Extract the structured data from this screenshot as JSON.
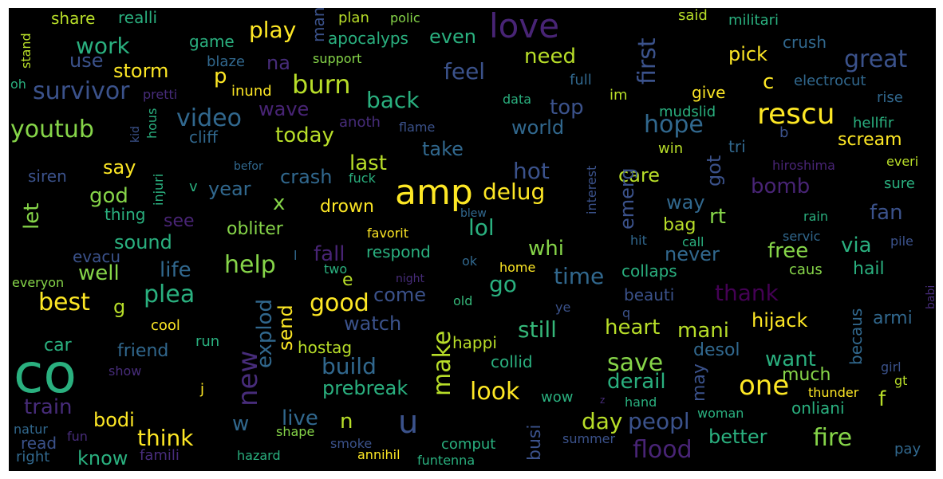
{
  "words": [
    {
      "text": "co",
      "color": "#2ab07f"
    },
    {
      "text": "amp",
      "color": "#fde725"
    },
    {
      "text": "love",
      "color": "#482475"
    },
    {
      "text": "u",
      "color": "#3b528b"
    },
    {
      "text": "rescu",
      "color": "#fde725"
    },
    {
      "text": "one",
      "color": "#fde725"
    },
    {
      "text": "new",
      "color": "#472c7a"
    },
    {
      "text": "burn",
      "color": "#b8de29"
    },
    {
      "text": "hope",
      "color": "#31688e"
    },
    {
      "text": "look",
      "color": "#fde725"
    },
    {
      "text": "great",
      "color": "#3b528b"
    },
    {
      "text": "make",
      "color": "#b8de29"
    },
    {
      "text": "fire",
      "color": "#86d549"
    },
    {
      "text": "video",
      "color": "#31688e"
    },
    {
      "text": "survivor",
      "color": "#3b528b"
    },
    {
      "text": "youtub",
      "color": "#86d549"
    },
    {
      "text": "save",
      "color": "#86d549"
    },
    {
      "text": "flood",
      "color": "#482475"
    },
    {
      "text": "best",
      "color": "#fde725"
    },
    {
      "text": "good",
      "color": "#fde725"
    },
    {
      "text": "plea",
      "color": "#2ab07f"
    },
    {
      "text": "help",
      "color": "#86d549"
    },
    {
      "text": "first",
      "color": "#3b528b"
    },
    {
      "text": "play",
      "color": "#fde725"
    },
    {
      "text": "work",
      "color": "#2ab07f"
    },
    {
      "text": "go",
      "color": "#2ab07f"
    },
    {
      "text": "lol",
      "color": "#2ab07f"
    },
    {
      "text": "time",
      "color": "#31688e"
    },
    {
      "text": "peopl",
      "color": "#3b528b"
    },
    {
      "text": "still",
      "color": "#35b779"
    },
    {
      "text": "thank",
      "color": "#440154"
    },
    {
      "text": "build",
      "color": "#31688e"
    },
    {
      "text": "explod",
      "color": "#31688e"
    },
    {
      "text": "think",
      "color": "#fde725"
    },
    {
      "text": "delug",
      "color": "#fde725"
    },
    {
      "text": "back",
      "color": "#2ab07f"
    },
    {
      "text": "hot",
      "color": "#3b528b"
    },
    {
      "text": "feel",
      "color": "#3b528b"
    },
    {
      "text": "need",
      "color": "#b8de29"
    },
    {
      "text": "last",
      "color": "#b8de29"
    },
    {
      "text": "day",
      "color": "#b8de29"
    },
    {
      "text": "heart",
      "color": "#b8de29"
    },
    {
      "text": "mani",
      "color": "#b8de29"
    },
    {
      "text": "want",
      "color": "#2ab07f"
    },
    {
      "text": "derail",
      "color": "#2ab07f"
    },
    {
      "text": "free",
      "color": "#86d549"
    },
    {
      "text": "better",
      "color": "#2ab07f"
    },
    {
      "text": "fan",
      "color": "#3b528b"
    },
    {
      "text": "via",
      "color": "#2ab07f"
    },
    {
      "text": "bomb",
      "color": "#482475"
    },
    {
      "text": "hijack",
      "color": "#fde725"
    },
    {
      "text": "fall",
      "color": "#482475"
    },
    {
      "text": "top",
      "color": "#3b528b"
    },
    {
      "text": "world",
      "color": "#31688e"
    },
    {
      "text": "take",
      "color": "#31688e"
    },
    {
      "text": "today",
      "color": "#b8de29"
    },
    {
      "text": "wave",
      "color": "#482475"
    },
    {
      "text": "god",
      "color": "#86d549"
    },
    {
      "text": "say",
      "color": "#fde725"
    },
    {
      "text": "let",
      "color": "#86d549"
    },
    {
      "text": "crash",
      "color": "#31688e"
    },
    {
      "text": "year",
      "color": "#31688e"
    },
    {
      "text": "watch",
      "color": "#3b528b"
    },
    {
      "text": "send",
      "color": "#fde725"
    },
    {
      "text": "live",
      "color": "#31688e"
    },
    {
      "text": "bodi",
      "color": "#fde725"
    },
    {
      "text": "train",
      "color": "#472c7a"
    },
    {
      "text": "know",
      "color": "#2ab07f"
    },
    {
      "text": "life",
      "color": "#31688e"
    },
    {
      "text": "well",
      "color": "#86d549"
    },
    {
      "text": "sound",
      "color": "#2ab07f"
    },
    {
      "text": "whi",
      "color": "#86d549"
    },
    {
      "text": "never",
      "color": "#31688e"
    },
    {
      "text": "care",
      "color": "#b8de29"
    },
    {
      "text": "way",
      "color": "#31688e"
    },
    {
      "text": "rt",
      "color": "#86d549"
    },
    {
      "text": "got",
      "color": "#3b528b"
    },
    {
      "text": "emerg",
      "color": "#3b528b"
    },
    {
      "text": "scream",
      "color": "#fde725"
    },
    {
      "text": "pick",
      "color": "#fde725"
    },
    {
      "text": "storm",
      "color": "#fde725"
    },
    {
      "text": "use",
      "color": "#3b528b"
    },
    {
      "text": "na",
      "color": "#472c7a"
    },
    {
      "text": "apocalyps",
      "color": "#2ab07f"
    },
    {
      "text": "even",
      "color": "#2ab07f"
    },
    {
      "text": "prebreak",
      "color": "#2ab07f"
    },
    {
      "text": "hostag",
      "color": "#b8de29"
    },
    {
      "text": "busi",
      "color": "#3b528b"
    },
    {
      "text": "may",
      "color": "#3b528b"
    },
    {
      "text": "hail",
      "color": "#2ab07f"
    },
    {
      "text": "armi",
      "color": "#31688e"
    },
    {
      "text": "desol",
      "color": "#31688e"
    },
    {
      "text": "much",
      "color": "#86d549"
    },
    {
      "text": "becaus",
      "color": "#31688e"
    },
    {
      "text": "obliter",
      "color": "#86d549"
    },
    {
      "text": "drown",
      "color": "#fde725"
    },
    {
      "text": "respond",
      "color": "#2ab07f"
    },
    {
      "text": "friend",
      "color": "#31688e"
    },
    {
      "text": "car",
      "color": "#2ab07f"
    },
    {
      "text": "evacu",
      "color": "#3b528b"
    },
    {
      "text": "siren",
      "color": "#3b528b"
    },
    {
      "text": "cliff",
      "color": "#31688e"
    },
    {
      "text": "thing",
      "color": "#2ab07f"
    },
    {
      "text": "see",
      "color": "#482475"
    },
    {
      "text": "bag",
      "color": "#b8de29"
    },
    {
      "text": "come",
      "color": "#3b528b"
    },
    {
      "text": "collid",
      "color": "#2ab07f"
    },
    {
      "text": "happi",
      "color": "#b8de29"
    },
    {
      "text": "beauti",
      "color": "#3b528b"
    },
    {
      "text": "collaps",
      "color": "#2ab07f"
    },
    {
      "text": "onliani",
      "color": "#2ab07f"
    },
    {
      "text": "realli",
      "color": "#2ab07f"
    },
    {
      "text": "share",
      "color": "#b8de29"
    },
    {
      "text": "game",
      "color": "#2ab07f"
    },
    {
      "text": "p",
      "color": "#fde725"
    },
    {
      "text": "c",
      "color": "#fde725"
    },
    {
      "text": "x",
      "color": "#86d549"
    },
    {
      "text": "e",
      "color": "#b8de29"
    },
    {
      "text": "g",
      "color": "#b8de29"
    },
    {
      "text": "n",
      "color": "#b8de29"
    },
    {
      "text": "w",
      "color": "#31688e"
    },
    {
      "text": "f",
      "color": "#b8de29"
    },
    {
      "text": "plan",
      "color": "#b8de29"
    },
    {
      "text": "polic",
      "color": "#86d549"
    },
    {
      "text": "support",
      "color": "#86d549"
    },
    {
      "text": "inund",
      "color": "#fde725"
    },
    {
      "text": "blaze",
      "color": "#31688e"
    },
    {
      "text": "said",
      "color": "#b8de29"
    },
    {
      "text": "militari",
      "color": "#2ab07f"
    },
    {
      "text": "crush",
      "color": "#31688e"
    },
    {
      "text": "electrocut",
      "color": "#31688e"
    },
    {
      "text": "rise",
      "color": "#31688e"
    },
    {
      "text": "hellfir",
      "color": "#2ab07f"
    },
    {
      "text": "tri",
      "color": "#31688e"
    },
    {
      "text": "b",
      "color": "#3b528b"
    },
    {
      "text": "win",
      "color": "#b8de29"
    },
    {
      "text": "give",
      "color": "#fde725"
    },
    {
      "text": "full",
      "color": "#31688e"
    },
    {
      "text": "im",
      "color": "#b8de29"
    },
    {
      "text": "data",
      "color": "#2ab07f"
    },
    {
      "text": "mudslid",
      "color": "#2ab07f"
    },
    {
      "text": "hiroshima",
      "color": "#482475"
    },
    {
      "text": "everi",
      "color": "#b8de29"
    },
    {
      "text": "sure",
      "color": "#2ab07f"
    },
    {
      "text": "rain",
      "color": "#2ab07f"
    },
    {
      "text": "servic",
      "color": "#31688e"
    },
    {
      "text": "pile",
      "color": "#3b528b"
    },
    {
      "text": "hit",
      "color": "#31688e"
    },
    {
      "text": "call",
      "color": "#2ab07f"
    },
    {
      "text": "babi",
      "color": "#472c7a"
    },
    {
      "text": "girl",
      "color": "#3b528b"
    },
    {
      "text": "gt",
      "color": "#b8de29"
    },
    {
      "text": "caus",
      "color": "#86d549"
    },
    {
      "text": "thunder",
      "color": "#fde725"
    },
    {
      "text": "pay",
      "color": "#31688e"
    },
    {
      "text": "woman",
      "color": "#2ab07f"
    },
    {
      "text": "summer",
      "color": "#3b528b"
    },
    {
      "text": "hand",
      "color": "#2ab07f"
    },
    {
      "text": "z",
      "color": "#472c7a"
    },
    {
      "text": "wow",
      "color": "#2ab07f"
    },
    {
      "text": "ye",
      "color": "#3b528b"
    },
    {
      "text": "q",
      "color": "#3b528b"
    },
    {
      "text": "home",
      "color": "#fde725"
    },
    {
      "text": "ok",
      "color": "#31688e"
    },
    {
      "text": "old",
      "color": "#35b779"
    },
    {
      "text": "night",
      "color": "#472c7a"
    },
    {
      "text": "two",
      "color": "#2ab07f"
    },
    {
      "text": "l",
      "color": "#31688e"
    },
    {
      "text": "favorit",
      "color": "#fde725"
    },
    {
      "text": "blew",
      "color": "#31688e"
    },
    {
      "text": "interest",
      "color": "#3b528b"
    },
    {
      "text": "fuck",
      "color": "#2ab07f"
    },
    {
      "text": "anoth",
      "color": "#472c7a"
    },
    {
      "text": "flame",
      "color": "#3b528b"
    },
    {
      "text": "v",
      "color": "#2ab07f"
    },
    {
      "text": "befor",
      "color": "#31688e"
    },
    {
      "text": "injuri",
      "color": "#2ab07f"
    },
    {
      "text": "hous",
      "color": "#2ab07f"
    },
    {
      "text": "kid",
      "color": "#3b528b"
    },
    {
      "text": "pretti",
      "color": "#472c7a"
    },
    {
      "text": "man",
      "color": "#3b528b"
    },
    {
      "text": "stand",
      "color": "#b8de29"
    },
    {
      "text": "oh",
      "color": "#2ab07f"
    },
    {
      "text": "everyon",
      "color": "#86d549"
    },
    {
      "text": "cool",
      "color": "#fde725"
    },
    {
      "text": "run",
      "color": "#2ab07f"
    },
    {
      "text": "show",
      "color": "#472c7a"
    },
    {
      "text": "j",
      "color": "#fde725"
    },
    {
      "text": "natur",
      "color": "#31688e"
    },
    {
      "text": "fun",
      "color": "#472c7a"
    },
    {
      "text": "read",
      "color": "#3b528b"
    },
    {
      "text": "right",
      "color": "#31688e"
    },
    {
      "text": "famili",
      "color": "#472c7a"
    },
    {
      "text": "hazard",
      "color": "#2ab07f"
    },
    {
      "text": "shape",
      "color": "#86d549"
    },
    {
      "text": "smoke",
      "color": "#3b528b"
    },
    {
      "text": "annihil",
      "color": "#fde725"
    },
    {
      "text": "comput",
      "color": "#2ab07f"
    },
    {
      "text": "funtenna",
      "color": "#2ab07f"
    }
  ]
}
